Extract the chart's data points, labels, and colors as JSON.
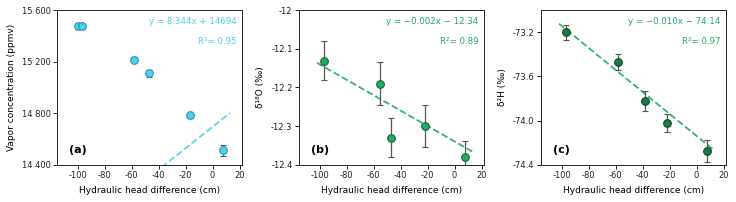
{
  "panels": [
    {
      "label": "(a)",
      "ylabel": "Vapor concentration (ppmv)",
      "eq_text": "y = 8.344x + 14694",
      "r2_text": "R²= 0.95",
      "eq_color": "#55CCEE",
      "line_color": "#55CCEE",
      "marker_color": "#55CCEE",
      "marker_edge_color": "#2299BB",
      "x": [
        -100,
        -97,
        -58,
        -47,
        -17,
        8
      ],
      "y": [
        15480,
        15475,
        15215,
        15110,
        14785,
        14510
      ],
      "yerr": [
        25,
        20,
        20,
        25,
        20,
        40
      ],
      "slope": 8.344,
      "intercept": 14694,
      "ylim": [
        14400,
        15600
      ],
      "yticks": [
        14400,
        14800,
        15200,
        15600
      ],
      "ytick_labels": [
        "14 400",
        "14 800",
        "15 200",
        "15 600"
      ]
    },
    {
      "label": "(b)",
      "ylabel": "δ¹⁸O (‰)",
      "eq_text": "y = −0.002x − 12.34",
      "r2_text": "R²= 0.89",
      "eq_color": "#22AA66",
      "line_color": "#22AA66",
      "marker_color": "#22AA66",
      "marker_edge_color": "#116633",
      "x": [
        -97,
        -55,
        -47,
        -22,
        8
      ],
      "y": [
        -12.13,
        -12.19,
        -12.33,
        -12.3,
        -12.38
      ],
      "yerr": [
        0.05,
        0.055,
        0.05,
        0.055,
        0.04
      ],
      "slope": -0.002,
      "intercept": -12.34,
      "ylim": [
        -12.4,
        -12.0
      ],
      "yticks": [
        -12.4,
        -12.3,
        -12.2,
        -12.1,
        -12.0
      ],
      "ytick_labels": [
        "-12.4",
        "-12.3",
        "-12.2",
        "-12.1",
        "-12"
      ]
    },
    {
      "label": "(c)",
      "ylabel": "δ²H (‰)",
      "eq_text": "y = −0.010x − 74.14",
      "r2_text": "R²= 0.97",
      "eq_color": "#22AA66",
      "line_color": "#22AA66",
      "marker_color": "#1a7a45",
      "marker_edge_color": "#0d4525",
      "x": [
        -97,
        -58,
        -38,
        -22,
        8
      ],
      "y": [
        -73.2,
        -73.47,
        -73.82,
        -74.02,
        -74.28
      ],
      "yerr": [
        0.07,
        0.07,
        0.09,
        0.08,
        0.1
      ],
      "slope": -0.01,
      "intercept": -74.14,
      "ylim": [
        -74.4,
        -73.0
      ],
      "yticks": [
        -74.4,
        -74.0,
        -73.6,
        -73.2
      ],
      "ytick_labels": [
        "-74.4",
        "-74.0",
        "-73.6",
        "-73.2"
      ]
    }
  ],
  "xlabel": "Hydraulic head difference (cm)",
  "xlim": [
    -115,
    22
  ],
  "xticks": [
    -100,
    -80,
    -60,
    -40,
    -20,
    0,
    20
  ],
  "background_color": "#ffffff",
  "ecolor": "#555555",
  "figsize": [
    7.36,
    2.02
  ],
  "dpi": 100
}
